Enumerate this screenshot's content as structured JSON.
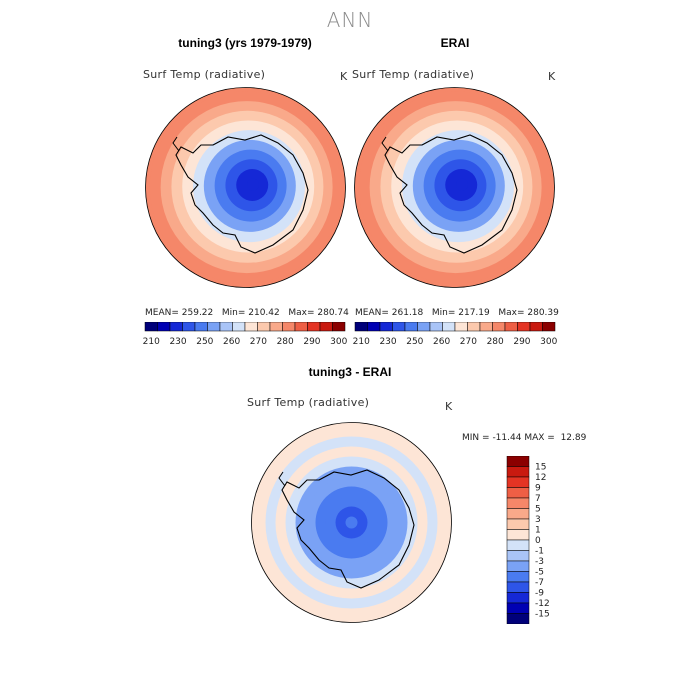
{
  "suptitle": "ANN",
  "colors": {
    "blues": [
      "#00007a",
      "#0000b3",
      "#1528d6",
      "#2e55e8",
      "#4a7bf0",
      "#7aa2f5",
      "#a9c4f7",
      "#d3e2f8"
    ],
    "oranges": [
      "#fde5d6",
      "#fcc9ad",
      "#f9a98a",
      "#f58769",
      "#ee5f45",
      "#e43424",
      "#c91a10",
      "#8b0000"
    ],
    "neutral": "#ffffff",
    "land_outline": "#000000"
  },
  "chart_data": [
    {
      "type": "heatmap",
      "title": "tuning3 (yrs 1979-1979)",
      "variable_label": "Surf Temp (radiative)",
      "units": "K",
      "stats": {
        "mean_label": "MEAN=",
        "mean": "259.22",
        "min_label": "Min=",
        "min": "210.42",
        "max_label": "Max=",
        "max": "280.74"
      },
      "colorbar": {
        "orientation": "horizontal",
        "ticks": [
          "210",
          "230",
          "250",
          "260",
          "270",
          "280",
          "290",
          "300"
        ],
        "boundaries": [
          210,
          220,
          230,
          240,
          250,
          255,
          260,
          265,
          270,
          275,
          280,
          285,
          290,
          295,
          300
        ]
      },
      "field": {
        "projection": "south polar stereographic",
        "rings": [
          {
            "lat_to": -90,
            "value": 222
          },
          {
            "lat_to": -85,
            "value": 226
          },
          {
            "lat_to": -80,
            "value": 234
          },
          {
            "lat_to": -75,
            "value": 245
          },
          {
            "lat_to": -70,
            "value": 252
          },
          {
            "lat_to": -65,
            "value": 261
          },
          {
            "lat_to": -60,
            "value": 268
          },
          {
            "lat_to": -55,
            "value": 273
          },
          {
            "lat_to": -50,
            "value": 277
          },
          {
            "lat_to": -45,
            "value": 281
          },
          {
            "lat_to": -40,
            "value": 285
          }
        ]
      }
    },
    {
      "type": "heatmap",
      "title": "ERAI",
      "variable_label": "Surf Temp (radiative)",
      "units": "K",
      "stats": {
        "mean_label": "MEAN=",
        "mean": "261.18",
        "min_label": "Min=",
        "min": "217.19",
        "max_label": "Max=",
        "max": "280.39"
      },
      "colorbar": {
        "orientation": "horizontal",
        "ticks": [
          "210",
          "230",
          "250",
          "260",
          "270",
          "280",
          "290",
          "300"
        ],
        "boundaries": [
          210,
          220,
          230,
          240,
          250,
          255,
          260,
          265,
          270,
          275,
          280,
          285,
          290,
          295,
          300
        ]
      },
      "field": {
        "projection": "south polar stereographic",
        "rings": [
          {
            "lat_to": -90,
            "value": 226
          },
          {
            "lat_to": -85,
            "value": 229
          },
          {
            "lat_to": -80,
            "value": 236
          },
          {
            "lat_to": -75,
            "value": 246
          },
          {
            "lat_to": -70,
            "value": 253
          },
          {
            "lat_to": -65,
            "value": 262
          },
          {
            "lat_to": -60,
            "value": 268
          },
          {
            "lat_to": -55,
            "value": 273
          },
          {
            "lat_to": -50,
            "value": 277
          },
          {
            "lat_to": -45,
            "value": 281
          },
          {
            "lat_to": -40,
            "value": 285
          }
        ]
      }
    },
    {
      "type": "heatmap",
      "title": "tuning3 - ERAI",
      "variable_label": "Surf Temp (radiative)",
      "units": "K",
      "stats": {
        "min_label": "MIN =",
        "min": "-11.44",
        "max_label": "MAX =",
        "max": "12.89"
      },
      "colorbar": {
        "orientation": "vertical",
        "ticks": [
          "15",
          "12",
          "9",
          "7",
          "5",
          "3",
          "1",
          "0",
          "-1",
          "-3",
          "-5",
          "-7",
          "-9",
          "-12",
          "-15"
        ],
        "boundaries": [
          -15,
          -12,
          -9,
          -7,
          -5,
          -3,
          -1,
          0,
          1,
          3,
          5,
          7,
          9,
          12,
          15
        ]
      },
      "field": {
        "projection": "south polar stereographic",
        "rings": [
          {
            "lat_to": -90,
            "value": -4
          },
          {
            "lat_to": -85,
            "value": -5
          },
          {
            "lat_to": -80,
            "value": -4
          },
          {
            "lat_to": -75,
            "value": -3
          },
          {
            "lat_to": -70,
            "value": -2
          },
          {
            "lat_to": -65,
            "value": -1.5
          },
          {
            "lat_to": -60,
            "value": -0.5
          },
          {
            "lat_to": -55,
            "value": 0.5
          },
          {
            "lat_to": -50,
            "value": -0.5
          },
          {
            "lat_to": -45,
            "value": 0.5
          },
          {
            "lat_to": -40,
            "value": 0.5
          }
        ]
      }
    }
  ]
}
